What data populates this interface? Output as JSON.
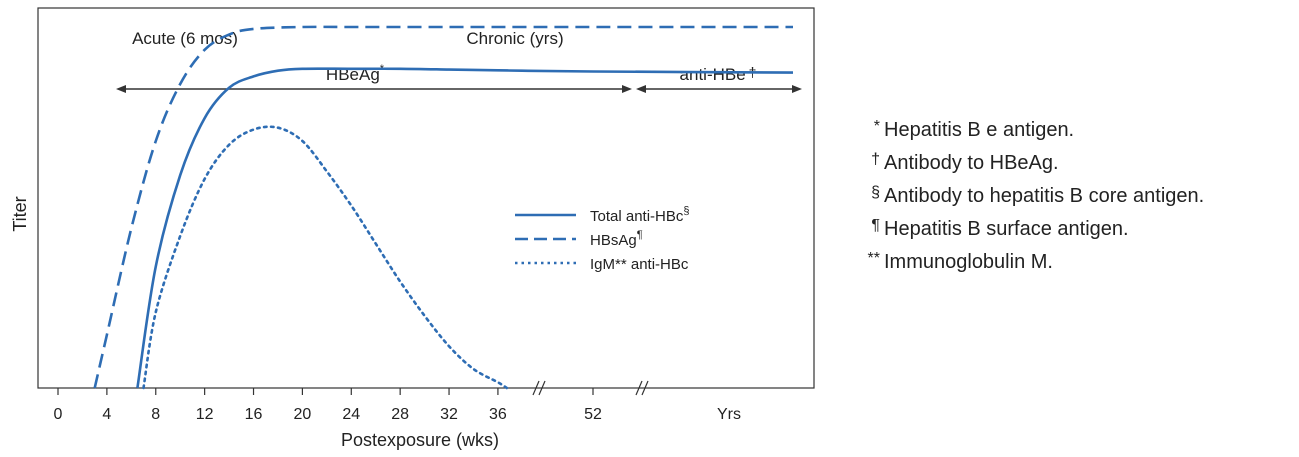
{
  "chart_data": {
    "type": "line",
    "xlabel": "Postexposure (wks)",
    "ylabel": "Titer",
    "x_ticks": [
      "0",
      "4",
      "8",
      "12",
      "16",
      "20",
      "24",
      "28",
      "32",
      "36",
      "52",
      "Yrs"
    ],
    "xlim": [
      0,
      62
    ],
    "ylim": [
      0,
      100
    ],
    "y_ticks_shown": false,
    "grid": false,
    "legend_position": "center-right",
    "phases": {
      "acute_label": "Acute (6 mos)",
      "chronic_label": "Chronic (yrs)",
      "hbeag_label": "HBeAg",
      "hbeag_mark": "*",
      "anti_hbe_label": "anti-HBe",
      "anti_hbe_mark": "†"
    },
    "series": [
      {
        "name": "Total anti-HBc",
        "mark": "§",
        "style": "solid",
        "color": "#2e6db4",
        "x": [
          6.5,
          8,
          10,
          12,
          14,
          16,
          18,
          20,
          24,
          28,
          32,
          36,
          40,
          52,
          62
        ],
        "y": [
          0,
          32,
          56,
          71,
          79,
          82,
          83.5,
          84,
          84,
          84,
          83.8,
          83.6,
          83.5,
          83.3,
          83
        ]
      },
      {
        "name": "HBsAg",
        "mark": "¶",
        "style": "dashed",
        "color": "#2e6db4",
        "x": [
          3,
          4,
          6,
          8,
          10,
          12,
          14,
          16,
          20,
          24,
          32,
          40,
          52,
          62
        ],
        "y": [
          0,
          14,
          42,
          65,
          80,
          89,
          93,
          94.5,
          95,
          95,
          95,
          95,
          95,
          95
        ]
      },
      {
        "name": "IgM** anti-HBc",
        "mark": "",
        "style": "dotted",
        "color": "#2e6db4",
        "x": [
          7,
          8,
          10,
          12,
          14,
          16,
          18,
          20,
          22,
          24,
          26,
          28,
          30,
          32,
          34,
          36,
          37.5
        ],
        "y": [
          0,
          20,
          40,
          55,
          64,
          68,
          68.5,
          65,
          57,
          48,
          38,
          28,
          19,
          11,
          5,
          1.5,
          0
        ]
      }
    ]
  },
  "footnotes": [
    {
      "symbol": "*",
      "text": "Hepatitis B e antigen."
    },
    {
      "symbol": "†",
      "text": "Antibody to HBeAg."
    },
    {
      "symbol": "§",
      "text": "Antibody to hepatitis B core antigen."
    },
    {
      "symbol": "¶",
      "text": "Hepatitis B surface antigen."
    },
    {
      "symbol": "**",
      "text": "Immunoglobulin M."
    }
  ]
}
